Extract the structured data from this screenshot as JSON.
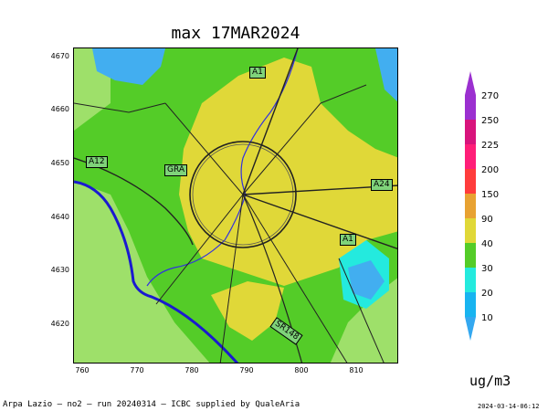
{
  "title": "max 17MAR2024",
  "y_ticks": [
    {
      "label": "4670",
      "value": 4670
    },
    {
      "label": "4660",
      "value": 4660
    },
    {
      "label": "4650",
      "value": 4650
    },
    {
      "label": "4640",
      "value": 4640
    },
    {
      "label": "4630",
      "value": 4630
    },
    {
      "label": "4620",
      "value": 4620
    }
  ],
  "x_ticks": [
    {
      "label": "760",
      "value": 760
    },
    {
      "label": "770",
      "value": 770
    },
    {
      "label": "780",
      "value": 780
    },
    {
      "label": "790",
      "value": 790
    },
    {
      "label": "800",
      "value": 800
    },
    {
      "label": "810",
      "value": 810
    }
  ],
  "road_labels": [
    "A1",
    "A12",
    "GRA",
    "A24",
    "A1",
    "SR148"
  ],
  "legend": {
    "levels": [
      "270",
      "250",
      "225",
      "200",
      "150",
      "90",
      "40",
      "30",
      "20",
      "10"
    ],
    "colors": [
      "#9b30d0",
      "#d8147c",
      "#ff1e78",
      "#ff3c3c",
      "#e8a232",
      "#e0d838",
      "#54cc28",
      "#9ee06a",
      "#24eade",
      "#18b4f0",
      "#34a8f0"
    ],
    "units": "ug/m3"
  },
  "map_colors": {
    "sea_blue": "#42aef0",
    "light_green": "#9ee06a",
    "green": "#54cc28",
    "yellow": "#e0d838",
    "cyan": "#24eade",
    "coast_line": "#1a1ad0",
    "river": "#3030e0"
  },
  "footer": {
    "left": "Arpa Lazio — no2 — run 20240314 — ICBC supplied by QualeAria",
    "right": "2024-03-14-06:12"
  }
}
